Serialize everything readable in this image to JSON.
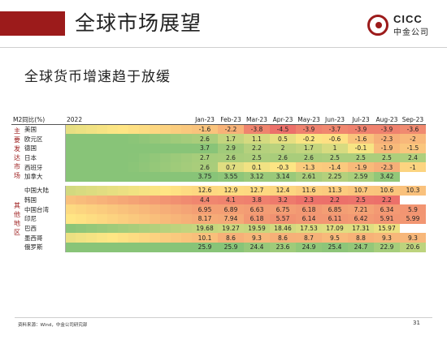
{
  "header": {
    "title": "全球市场展望"
  },
  "logo": {
    "brand": "CICC",
    "brand_cn": "中金公司"
  },
  "subtitle": "全球货币增速趋于放缓",
  "table": {
    "corner_label": "M2同比(%)",
    "year_label": "2022",
    "months": [
      "Jan-23",
      "Feb-23",
      "Mar-23",
      "Apr-23",
      "May-23",
      "Jun-23",
      "Jul-23",
      "Aug-23",
      "Sep-23"
    ],
    "groups": [
      {
        "label": "主要发达市场",
        "chars": [
          "主",
          "要",
          "发",
          "达",
          "市",
          "场"
        ],
        "rows": [
          {
            "country": "美国",
            "values": [
              "-1.6",
              "-2.2",
              "-3.8",
              "-4.5",
              "-3.9",
              "-3.7",
              "-3.9",
              "-3.9",
              "-3.6"
            ]
          },
          {
            "country": "欧元区",
            "values": [
              "2.6",
              "1.7",
              "1.1",
              "0.5",
              "-0.2",
              "-0.6",
              "-1.6",
              "-2.3",
              "-2"
            ]
          },
          {
            "country": "德国",
            "values": [
              "3.7",
              "2.9",
              "2.2",
              "2",
              "1.7",
              "1",
              "-0.1",
              "-1.9",
              "-1.5"
            ]
          },
          {
            "country": "日本",
            "values": [
              "2.7",
              "2.6",
              "2.5",
              "2.6",
              "2.6",
              "2.5",
              "2.5",
              "2.5",
              "2.4"
            ]
          },
          {
            "country": "西班牙",
            "values": [
              "2.6",
              "0.7",
              "0.1",
              "-0.3",
              "-1.3",
              "-1.4",
              "-1.9",
              "-2.3",
              "-1"
            ]
          },
          {
            "country": "加拿大",
            "values": [
              "3.75",
              "3.55",
              "3.12",
              "3.14",
              "2.61",
              "2.25",
              "2.59",
              "3.42",
              ""
            ]
          }
        ]
      },
      {
        "label": "其他地区",
        "chars": [
          "其",
          "他",
          "地",
          "区"
        ],
        "rows": [
          {
            "country": "中国大陆",
            "values": [
              "12.6",
              "12.9",
              "12.7",
              "12.4",
              "11.6",
              "11.3",
              "10.7",
              "10.6",
              "10.3"
            ]
          },
          {
            "country": "韩国",
            "values": [
              "4.4",
              "4.1",
              "3.8",
              "3.2",
              "2.3",
              "2.2",
              "2.5",
              "2.2",
              ""
            ]
          },
          {
            "country": "中国台湾",
            "values": [
              "6.95",
              "6.89",
              "6.63",
              "6.75",
              "6.18",
              "6.85",
              "7.21",
              "6.34",
              "5.9"
            ]
          },
          {
            "country": "印尼",
            "values": [
              "8.17",
              "7.94",
              "6.18",
              "5.57",
              "6.14",
              "6.11",
              "6.42",
              "5.91",
              "5.99"
            ]
          },
          {
            "country": "巴西",
            "values": [
              "19.68",
              "19.27",
              "19.59",
              "18.46",
              "17.53",
              "17.09",
              "17.31",
              "15.97",
              ""
            ]
          },
          {
            "country": "墨西哥",
            "values": [
              "10.1",
              "8.6",
              "9.3",
              "8.6",
              "8.7",
              "9.5",
              "8.8",
              "9.3",
              "9.3"
            ]
          },
          {
            "country": "俄罗斯",
            "values": [
              "25.9",
              "25.9",
              "24.4",
              "23.6",
              "24.9",
              "25.4",
              "24.7",
              "22.9",
              "20.6"
            ]
          }
        ]
      }
    ]
  },
  "footer": {
    "source": "资料来源：Wind，中金公司研究部",
    "page": "31"
  }
}
